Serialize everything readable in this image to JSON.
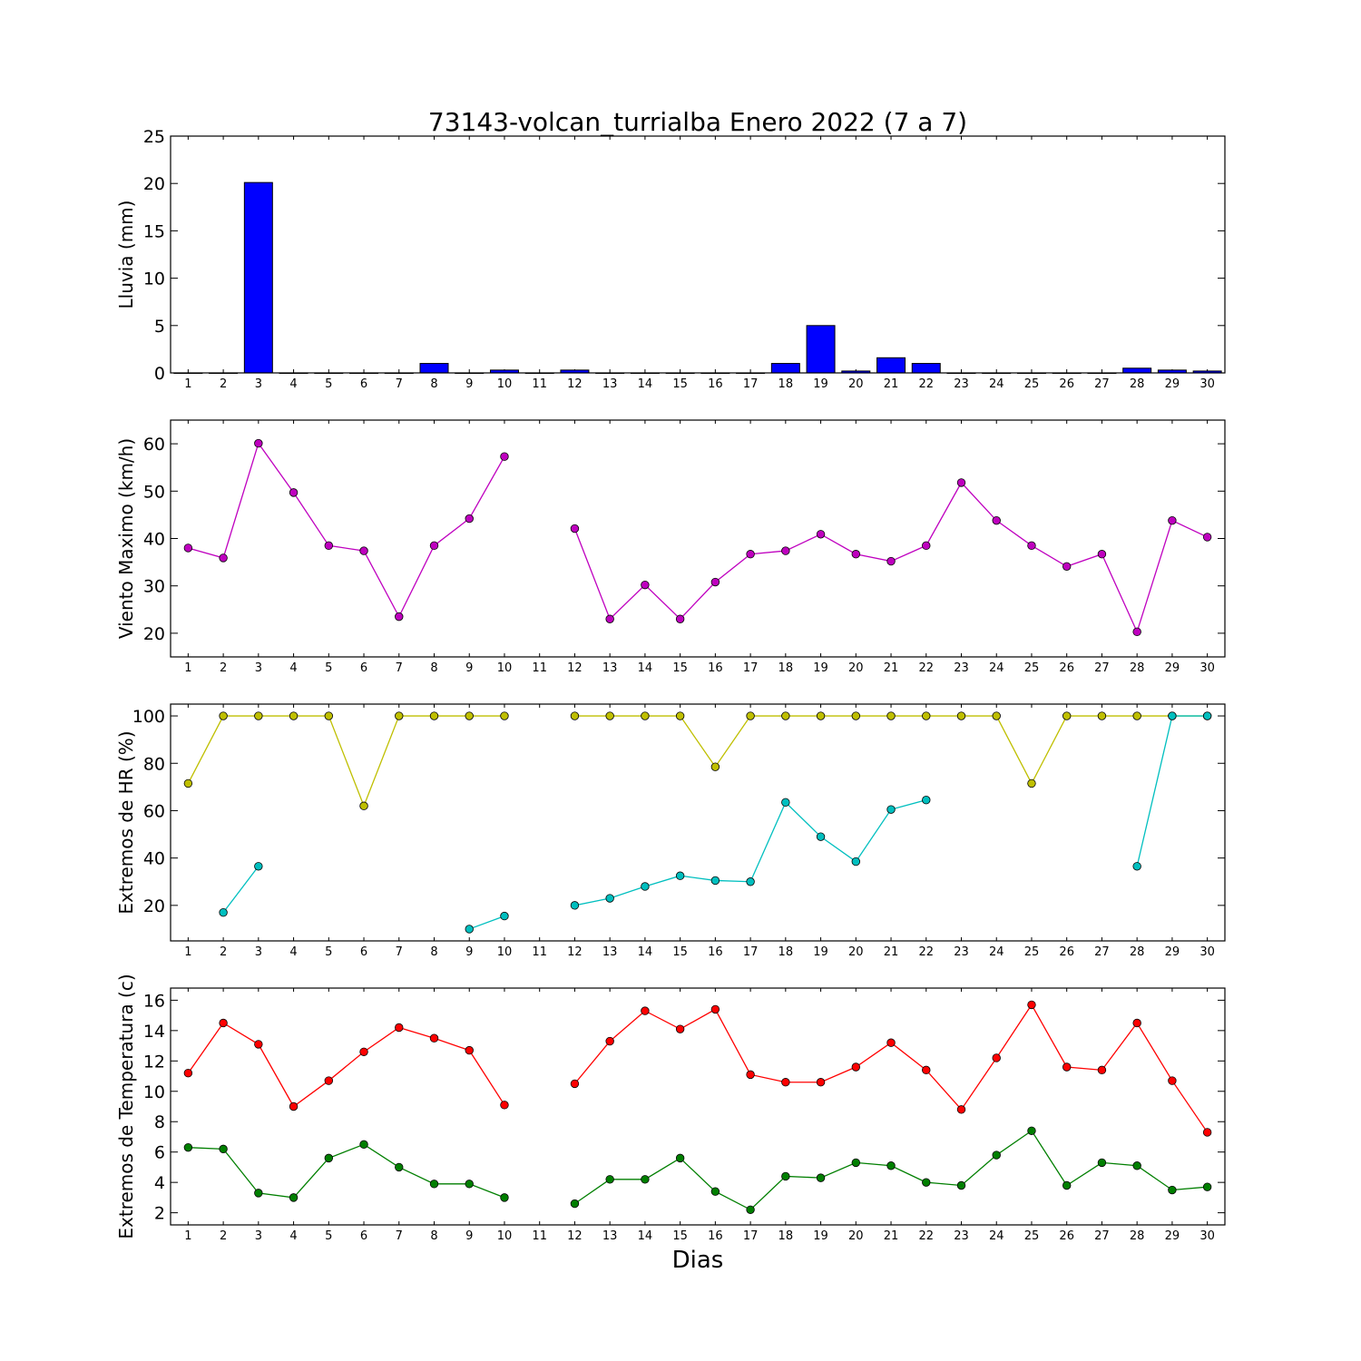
{
  "figure": {
    "title": "73143-volcan_turrialba Enero 2022  (7 a 7)",
    "xlabel": "Dias"
  },
  "chart_data": [
    {
      "type": "bar",
      "ylabel": "Lluvia (mm)",
      "ylim": [
        0,
        25
      ],
      "yticks": [
        0,
        5,
        10,
        15,
        20,
        25
      ],
      "xlim": [
        0.5,
        30.5
      ],
      "x_tick_labels": [
        "1",
        "2",
        "3",
        "4",
        "5",
        "6",
        "7",
        "8",
        "9",
        "10",
        "11",
        "12",
        "13",
        "14",
        "15",
        "16",
        "17",
        "18",
        "19",
        "20",
        "21",
        "22",
        "23",
        "24",
        "25",
        "26",
        "27",
        "28",
        "29",
        "30"
      ],
      "grid": false,
      "series": [
        {
          "color": "#0000ff",
          "x": [
            1,
            2,
            3,
            4,
            5,
            6,
            7,
            8,
            9,
            10,
            11,
            12,
            13,
            14,
            15,
            16,
            17,
            18,
            19,
            20,
            21,
            22,
            23,
            24,
            25,
            26,
            27,
            28,
            29,
            30
          ],
          "values": [
            0,
            0,
            20.1,
            0,
            0,
            0,
            0,
            1.0,
            0,
            0.3,
            0,
            0.3,
            0,
            0,
            0,
            0,
            0,
            1.0,
            5.0,
            0.2,
            1.6,
            1.0,
            0,
            0,
            0,
            0,
            0,
            0.5,
            0.3,
            0.2
          ]
        }
      ]
    },
    {
      "type": "line",
      "ylabel": "Viento Maximo (km/h)",
      "ylim": [
        15,
        65
      ],
      "yticks": [
        20,
        30,
        40,
        50,
        60
      ],
      "xlim": [
        0.5,
        30.5
      ],
      "x_tick_labels": [
        "1",
        "2",
        "3",
        "4",
        "5",
        "6",
        "7",
        "8",
        "9",
        "10",
        "11",
        "12",
        "13",
        "14",
        "15",
        "16",
        "17",
        "18",
        "19",
        "20",
        "21",
        "22",
        "23",
        "24",
        "25",
        "26",
        "27",
        "28",
        "29",
        "30"
      ],
      "grid": false,
      "series": [
        {
          "color": "#bf00bf",
          "x": [
            1,
            2,
            3,
            4,
            5,
            6,
            7,
            8,
            9,
            10,
            11,
            12,
            13,
            14,
            15,
            16,
            17,
            18,
            19,
            20,
            21,
            22,
            23,
            24,
            25,
            26,
            27,
            28,
            29,
            30
          ],
          "values": [
            38.0,
            35.9,
            60.1,
            49.7,
            38.5,
            37.4,
            23.5,
            38.5,
            44.2,
            57.3,
            null,
            42.1,
            23.0,
            30.2,
            23.0,
            30.8,
            36.7,
            37.4,
            40.9,
            36.7,
            35.2,
            38.5,
            51.8,
            43.8,
            38.5,
            34.1,
            36.7,
            20.3,
            43.8,
            40.3
          ]
        }
      ]
    },
    {
      "type": "line",
      "ylabel": "Extremos de HR (%)",
      "ylim": [
        5,
        105
      ],
      "yticks": [
        20,
        40,
        60,
        80,
        100
      ],
      "xlim": [
        0.5,
        30.5
      ],
      "x_tick_labels": [
        "1",
        "2",
        "3",
        "4",
        "5",
        "6",
        "7",
        "8",
        "9",
        "10",
        "11",
        "12",
        "13",
        "14",
        "15",
        "16",
        "17",
        "18",
        "19",
        "20",
        "21",
        "22",
        "23",
        "24",
        "25",
        "26",
        "27",
        "28",
        "29",
        "30"
      ],
      "grid": false,
      "series": [
        {
          "color": "#bfbf00",
          "x": [
            1,
            2,
            3,
            4,
            5,
            6,
            7,
            8,
            9,
            10,
            11,
            12,
            13,
            14,
            15,
            16,
            17,
            18,
            19,
            20,
            21,
            22,
            23,
            24,
            25,
            26,
            27,
            28,
            29,
            30
          ],
          "values": [
            71.5,
            100,
            100,
            100,
            100,
            62,
            100,
            100,
            100,
            100,
            null,
            100,
            100,
            100,
            100,
            78.5,
            100,
            100,
            100,
            100,
            100,
            100,
            100,
            100,
            71.5,
            100,
            100,
            100,
            100,
            100
          ]
        },
        {
          "color": "#00bfbf",
          "x": [
            1,
            2,
            3,
            4,
            5,
            6,
            7,
            8,
            9,
            10,
            11,
            12,
            13,
            14,
            15,
            16,
            17,
            18,
            19,
            20,
            21,
            22,
            23,
            24,
            25,
            26,
            27,
            28,
            29,
            30
          ],
          "values": [
            null,
            17,
            36.5,
            null,
            null,
            null,
            null,
            null,
            10,
            15.5,
            null,
            20,
            23,
            28,
            32.5,
            30.5,
            30,
            63.5,
            49,
            38.5,
            60.5,
            64.5,
            null,
            null,
            null,
            null,
            null,
            36.5,
            100,
            100
          ]
        }
      ]
    },
    {
      "type": "line",
      "ylabel": "Extremos de Temperatura (c)",
      "ylim": [
        1.2,
        16.8
      ],
      "yticks": [
        2,
        4,
        6,
        8,
        10,
        12,
        14,
        16
      ],
      "xlim": [
        0.5,
        30.5
      ],
      "x_tick_labels": [
        "1",
        "2",
        "3",
        "4",
        "5",
        "6",
        "7",
        "8",
        "9",
        "10",
        "11",
        "12",
        "13",
        "14",
        "15",
        "16",
        "17",
        "18",
        "19",
        "20",
        "21",
        "22",
        "23",
        "24",
        "25",
        "26",
        "27",
        "28",
        "29",
        "30"
      ],
      "grid": false,
      "series": [
        {
          "color": "#ff0000",
          "x": [
            1,
            2,
            3,
            4,
            5,
            6,
            7,
            8,
            9,
            10,
            11,
            12,
            13,
            14,
            15,
            16,
            17,
            18,
            19,
            20,
            21,
            22,
            23,
            24,
            25,
            26,
            27,
            28,
            29,
            30
          ],
          "values": [
            11.2,
            14.5,
            13.1,
            9.0,
            10.7,
            12.6,
            14.2,
            13.5,
            12.7,
            9.1,
            null,
            10.5,
            13.3,
            15.3,
            14.1,
            15.4,
            11.1,
            10.6,
            10.6,
            11.6,
            13.2,
            11.4,
            8.8,
            12.2,
            15.7,
            11.6,
            11.4,
            14.5,
            10.7,
            7.3
          ]
        },
        {
          "color": "#007f00",
          "x": [
            1,
            2,
            3,
            4,
            5,
            6,
            7,
            8,
            9,
            10,
            11,
            12,
            13,
            14,
            15,
            16,
            17,
            18,
            19,
            20,
            21,
            22,
            23,
            24,
            25,
            26,
            27,
            28,
            29,
            30
          ],
          "values": [
            6.3,
            6.2,
            3.3,
            3.0,
            5.6,
            6.5,
            5.0,
            3.9,
            3.9,
            3.0,
            null,
            2.6,
            4.2,
            4.2,
            5.6,
            3.4,
            2.2,
            4.4,
            4.3,
            5.3,
            5.1,
            4.0,
            3.8,
            5.8,
            7.4,
            3.8,
            5.3,
            5.1,
            3.5,
            3.7
          ]
        }
      ]
    }
  ]
}
